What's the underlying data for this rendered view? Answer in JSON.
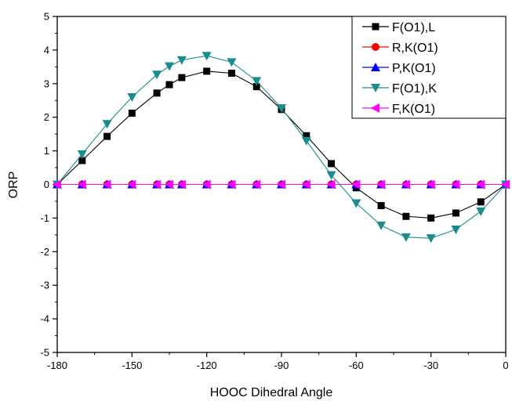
{
  "chart_data": {
    "type": "line",
    "xlabel": "HOOC Dihedral Angle",
    "ylabel": "ORP",
    "xlim": [
      -180,
      0
    ],
    "ylim": [
      -5,
      5
    ],
    "x_ticks": [
      -180,
      -150,
      -120,
      -90,
      -60,
      -30,
      0
    ],
    "y_ticks": [
      5,
      4,
      3,
      2,
      1,
      0,
      -1,
      -2,
      -3,
      -4,
      -5
    ],
    "x_tick_labels": [
      "-180",
      "-150",
      "-120",
      "-90",
      "-60",
      "-30",
      "0"
    ],
    "y_tick_labels": [
      "5",
      "4",
      "3",
      "2",
      "1",
      "0",
      "-1",
      "-2",
      "-3",
      "-4",
      "-5"
    ],
    "grid": false,
    "legend_position": "top-right",
    "series": [
      {
        "name": "F(O1),L",
        "color": "#000000",
        "marker": "square",
        "x": [
          -180,
          -170,
          -160,
          -150,
          -140,
          -135,
          -130,
          -120,
          -110,
          -100,
          -90,
          -80,
          -70,
          -60,
          -50,
          -40,
          -30,
          -20,
          -10,
          0
        ],
        "y": [
          0,
          0.71,
          1.43,
          2.12,
          2.72,
          2.97,
          3.18,
          3.37,
          3.31,
          2.91,
          2.23,
          1.45,
          0.62,
          -0.1,
          -0.63,
          -0.95,
          -1.0,
          -0.85,
          -0.52,
          0
        ]
      },
      {
        "name": "R,K(O1)",
        "color": "#ff0000",
        "marker": "circle",
        "x": [
          -180,
          -170,
          -160,
          -150,
          -140,
          -135,
          -130,
          -120,
          -110,
          -100,
          -90,
          -80,
          -70,
          -60,
          -50,
          -40,
          -30,
          -20,
          -10,
          0
        ],
        "y": [
          0,
          0,
          0,
          0,
          0,
          0,
          0,
          0,
          0,
          0,
          0,
          0,
          0,
          0,
          0,
          0,
          0,
          0,
          0,
          0
        ]
      },
      {
        "name": "P,K(O1)",
        "color": "#0000ff",
        "marker": "triangle-up",
        "x": [
          -180,
          -170,
          -160,
          -150,
          -140,
          -135,
          -130,
          -120,
          -110,
          -100,
          -90,
          -80,
          -70,
          -60,
          -50,
          -40,
          -30,
          -20,
          -10,
          0
        ],
        "y": [
          0,
          0,
          0,
          0,
          0,
          0,
          0,
          0,
          0,
          0,
          0,
          0,
          0,
          0,
          0,
          0,
          0,
          0,
          0,
          0
        ]
      },
      {
        "name": "F(O1),K",
        "color": "#1a8c8c",
        "marker": "triangle-down",
        "x": [
          -180,
          -170,
          -160,
          -150,
          -140,
          -135,
          -130,
          -120,
          -110,
          -100,
          -90,
          -80,
          -70,
          -60,
          -50,
          -40,
          -30,
          -20,
          -10,
          0
        ],
        "y": [
          0,
          0.9,
          1.8,
          2.6,
          3.27,
          3.52,
          3.7,
          3.83,
          3.64,
          3.08,
          2.27,
          1.3,
          0.28,
          -0.56,
          -1.22,
          -1.57,
          -1.6,
          -1.34,
          -0.8,
          0
        ]
      },
      {
        "name": "F,K(O1)",
        "color": "#ff00ff",
        "marker": "triangle-left",
        "x": [
          -180,
          -170,
          -160,
          -150,
          -140,
          -135,
          -130,
          -120,
          -110,
          -100,
          -90,
          -80,
          -70,
          -60,
          -50,
          -40,
          -30,
          -20,
          -10,
          0
        ],
        "y": [
          0,
          0,
          0,
          0,
          0,
          0,
          0,
          0,
          0,
          0,
          0,
          0,
          0,
          0,
          0,
          0,
          0,
          0,
          0,
          0
        ]
      }
    ]
  }
}
